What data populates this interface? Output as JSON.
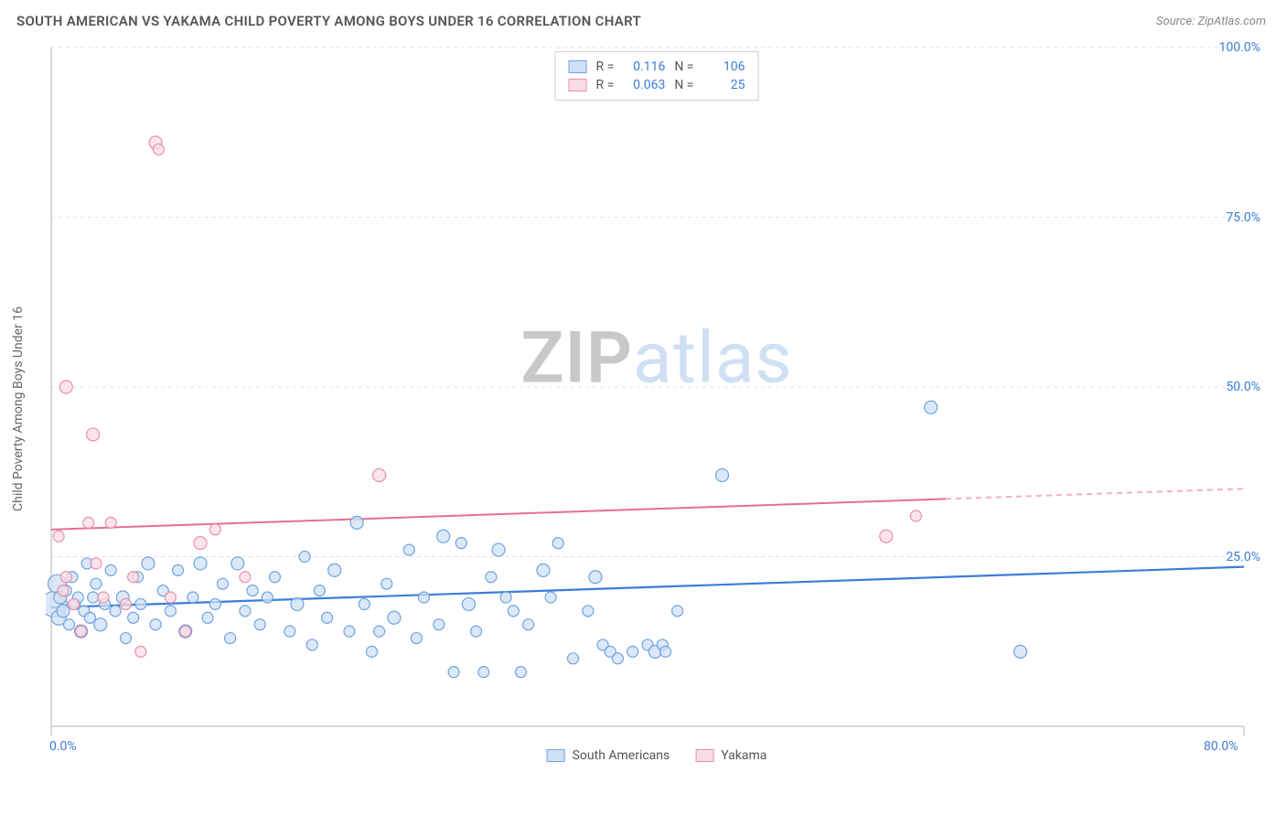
{
  "title": "SOUTH AMERICAN VS YAKAMA CHILD POVERTY AMONG BOYS UNDER 16 CORRELATION CHART",
  "source_prefix": "Source: ",
  "source_name": "ZipAtlas.com",
  "watermark": {
    "part1": "ZIP",
    "part2": "atlas"
  },
  "chart": {
    "type": "scatter",
    "background_color": "#ffffff",
    "grid_color": "#e1e1e1",
    "axis_line_color": "#cccccc",
    "tick_label_color": "#3b7dd8",
    "label_color": "#666666",
    "ylabel": "Child Poverty Among Boys Under 16",
    "xlim": [
      0,
      80
    ],
    "ylim": [
      0,
      100
    ],
    "x_ticks": [
      {
        "value": 0,
        "label": "0.0%"
      },
      {
        "value": 80,
        "label": "80.0%"
      }
    ],
    "y_ticks": [
      {
        "value": 25,
        "label": "25.0%"
      },
      {
        "value": 50,
        "label": "50.0%"
      },
      {
        "value": 75,
        "label": "75.0%"
      },
      {
        "value": 100,
        "label": "100.0%"
      }
    ],
    "stats_legend": {
      "rows": [
        {
          "swatch_fill": "#cfe0f4",
          "swatch_stroke": "#6fa3e0",
          "r_label": "R =",
          "r": "0.116",
          "n_label": "N =",
          "n": "106"
        },
        {
          "swatch_fill": "#fadce4",
          "swatch_stroke": "#e98fab",
          "r_label": "R =",
          "r": "0.063",
          "n_label": "N =",
          "n": "25"
        }
      ]
    },
    "series_legend": {
      "items": [
        {
          "swatch_fill": "#cfe0f4",
          "swatch_stroke": "#6fa3e0",
          "label": "South Americans"
        },
        {
          "swatch_fill": "#fadce4",
          "swatch_stroke": "#e98fab",
          "label": "Yakama"
        }
      ]
    },
    "series": [
      {
        "name": "South Americans",
        "marker_fill": "#cfe0f4",
        "marker_stroke": "#6fa3e0",
        "marker_fill_opacity": 0.75,
        "trend": {
          "color": "#3b7dd8",
          "width": 2.2,
          "x1": 0,
          "y1": 17.5,
          "x2": 80,
          "y2": 23.5,
          "dash_after_x": null
        },
        "points": [
          {
            "x": 0.2,
            "y": 18,
            "r": 14
          },
          {
            "x": 0.4,
            "y": 21,
            "r": 10
          },
          {
            "x": 0.5,
            "y": 16,
            "r": 8
          },
          {
            "x": 0.6,
            "y": 19,
            "r": 7
          },
          {
            "x": 0.8,
            "y": 17,
            "r": 7
          },
          {
            "x": 1.0,
            "y": 20,
            "r": 6
          },
          {
            "x": 1.2,
            "y": 15,
            "r": 6
          },
          {
            "x": 1.4,
            "y": 22,
            "r": 6
          },
          {
            "x": 1.6,
            "y": 18,
            "r": 6
          },
          {
            "x": 1.8,
            "y": 19,
            "r": 6
          },
          {
            "x": 2.0,
            "y": 14,
            "r": 7
          },
          {
            "x": 2.2,
            "y": 17,
            "r": 6
          },
          {
            "x": 2.4,
            "y": 24,
            "r": 6
          },
          {
            "x": 2.6,
            "y": 16,
            "r": 6
          },
          {
            "x": 2.8,
            "y": 19,
            "r": 6
          },
          {
            "x": 3,
            "y": 21,
            "r": 6
          },
          {
            "x": 3.3,
            "y": 15,
            "r": 7
          },
          {
            "x": 3.6,
            "y": 18,
            "r": 6
          },
          {
            "x": 4,
            "y": 23,
            "r": 6
          },
          {
            "x": 4.3,
            "y": 17,
            "r": 6
          },
          {
            "x": 4.8,
            "y": 19,
            "r": 7
          },
          {
            "x": 5,
            "y": 13,
            "r": 6
          },
          {
            "x": 5.5,
            "y": 16,
            "r": 6
          },
          {
            "x": 5.8,
            "y": 22,
            "r": 6
          },
          {
            "x": 6,
            "y": 18,
            "r": 6
          },
          {
            "x": 6.5,
            "y": 24,
            "r": 7
          },
          {
            "x": 7,
            "y": 15,
            "r": 6
          },
          {
            "x": 7.5,
            "y": 20,
            "r": 6
          },
          {
            "x": 8,
            "y": 17,
            "r": 6
          },
          {
            "x": 8.5,
            "y": 23,
            "r": 6
          },
          {
            "x": 9,
            "y": 14,
            "r": 7
          },
          {
            "x": 9.5,
            "y": 19,
            "r": 6
          },
          {
            "x": 10,
            "y": 24,
            "r": 7
          },
          {
            "x": 10.5,
            "y": 16,
            "r": 6
          },
          {
            "x": 11,
            "y": 18,
            "r": 6
          },
          {
            "x": 11.5,
            "y": 21,
            "r": 6
          },
          {
            "x": 12,
            "y": 13,
            "r": 6
          },
          {
            "x": 12.5,
            "y": 24,
            "r": 7
          },
          {
            "x": 13,
            "y": 17,
            "r": 6
          },
          {
            "x": 13.5,
            "y": 20,
            "r": 6
          },
          {
            "x": 14,
            "y": 15,
            "r": 6
          },
          {
            "x": 14.5,
            "y": 19,
            "r": 6
          },
          {
            "x": 15,
            "y": 22,
            "r": 6
          },
          {
            "x": 16,
            "y": 14,
            "r": 6
          },
          {
            "x": 16.5,
            "y": 18,
            "r": 7
          },
          {
            "x": 17,
            "y": 25,
            "r": 6
          },
          {
            "x": 17.5,
            "y": 12,
            "r": 6
          },
          {
            "x": 18,
            "y": 20,
            "r": 6
          },
          {
            "x": 18.5,
            "y": 16,
            "r": 6
          },
          {
            "x": 19,
            "y": 23,
            "r": 7
          },
          {
            "x": 20,
            "y": 14,
            "r": 6
          },
          {
            "x": 20.5,
            "y": 30,
            "r": 7
          },
          {
            "x": 21,
            "y": 18,
            "r": 6
          },
          {
            "x": 21.5,
            "y": 11,
            "r": 6
          },
          {
            "x": 22,
            "y": 14,
            "r": 6
          },
          {
            "x": 22.5,
            "y": 21,
            "r": 6
          },
          {
            "x": 23,
            "y": 16,
            "r": 7
          },
          {
            "x": 24,
            "y": 26,
            "r": 6
          },
          {
            "x": 24.5,
            "y": 13,
            "r": 6
          },
          {
            "x": 25,
            "y": 19,
            "r": 6
          },
          {
            "x": 26,
            "y": 15,
            "r": 6
          },
          {
            "x": 26.3,
            "y": 28,
            "r": 7
          },
          {
            "x": 27,
            "y": 8,
            "r": 6
          },
          {
            "x": 27.5,
            "y": 27,
            "r": 6
          },
          {
            "x": 28,
            "y": 18,
            "r": 7
          },
          {
            "x": 28.5,
            "y": 14,
            "r": 6
          },
          {
            "x": 29,
            "y": 8,
            "r": 6
          },
          {
            "x": 29.5,
            "y": 22,
            "r": 6
          },
          {
            "x": 30,
            "y": 26,
            "r": 7
          },
          {
            "x": 30.5,
            "y": 19,
            "r": 6
          },
          {
            "x": 31,
            "y": 17,
            "r": 6
          },
          {
            "x": 31.5,
            "y": 8,
            "r": 6
          },
          {
            "x": 32,
            "y": 15,
            "r": 6
          },
          {
            "x": 33,
            "y": 23,
            "r": 7
          },
          {
            "x": 33.5,
            "y": 19,
            "r": 6
          },
          {
            "x": 34,
            "y": 27,
            "r": 6
          },
          {
            "x": 35,
            "y": 10,
            "r": 6
          },
          {
            "x": 36,
            "y": 17,
            "r": 6
          },
          {
            "x": 36.5,
            "y": 22,
            "r": 7
          },
          {
            "x": 37,
            "y": 12,
            "r": 6
          },
          {
            "x": 37.5,
            "y": 11,
            "r": 6
          },
          {
            "x": 38,
            "y": 10,
            "r": 6
          },
          {
            "x": 39,
            "y": 11,
            "r": 6
          },
          {
            "x": 40,
            "y": 12,
            "r": 6
          },
          {
            "x": 40.5,
            "y": 11,
            "r": 7
          },
          {
            "x": 41,
            "y": 12,
            "r": 6
          },
          {
            "x": 41.2,
            "y": 11,
            "r": 6
          },
          {
            "x": 42,
            "y": 17,
            "r": 6
          },
          {
            "x": 45,
            "y": 37,
            "r": 7
          },
          {
            "x": 59,
            "y": 47,
            "r": 7
          },
          {
            "x": 65,
            "y": 11,
            "r": 7
          }
        ]
      },
      {
        "name": "Yakama",
        "marker_fill": "#fadce4",
        "marker_stroke": "#e98fab",
        "marker_fill_opacity": 0.75,
        "trend": {
          "color": "#e56f93",
          "width": 2.0,
          "x1": 0,
          "y1": 29,
          "x2": 80,
          "y2": 35,
          "dash_after_x": 60
        },
        "points": [
          {
            "x": 0.5,
            "y": 28,
            "r": 6
          },
          {
            "x": 0.8,
            "y": 20,
            "r": 6
          },
          {
            "x": 1,
            "y": 22,
            "r": 6
          },
          {
            "x": 1,
            "y": 50,
            "r": 7
          },
          {
            "x": 1.5,
            "y": 18,
            "r": 6
          },
          {
            "x": 2,
            "y": 14,
            "r": 6
          },
          {
            "x": 2.5,
            "y": 30,
            "r": 6
          },
          {
            "x": 2.8,
            "y": 43,
            "r": 7
          },
          {
            "x": 3,
            "y": 24,
            "r": 6
          },
          {
            "x": 3.5,
            "y": 19,
            "r": 6
          },
          {
            "x": 4,
            "y": 30,
            "r": 6
          },
          {
            "x": 5,
            "y": 18,
            "r": 6
          },
          {
            "x": 5.5,
            "y": 22,
            "r": 6
          },
          {
            "x": 6,
            "y": 11,
            "r": 6
          },
          {
            "x": 7,
            "y": 86,
            "r": 7
          },
          {
            "x": 7.2,
            "y": 85,
            "r": 6
          },
          {
            "x": 8,
            "y": 19,
            "r": 6
          },
          {
            "x": 9,
            "y": 14,
            "r": 6
          },
          {
            "x": 10,
            "y": 27,
            "r": 7
          },
          {
            "x": 11,
            "y": 29,
            "r": 6
          },
          {
            "x": 13,
            "y": 22,
            "r": 6
          },
          {
            "x": 22,
            "y": 37,
            "r": 7
          },
          {
            "x": 56,
            "y": 28,
            "r": 7
          },
          {
            "x": 58,
            "y": 31,
            "r": 6
          }
        ]
      }
    ]
  }
}
